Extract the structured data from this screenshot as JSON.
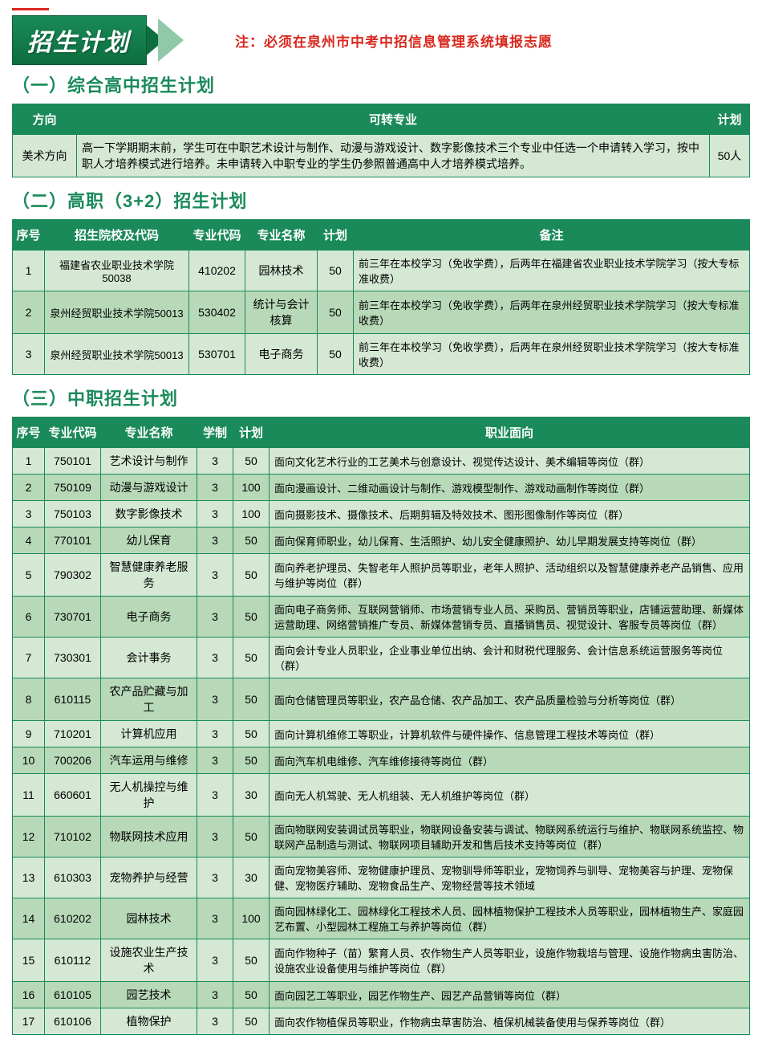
{
  "banner_title": "招生计划",
  "note": "注：必须在泉州市中考中招信息管理系统填报志愿",
  "section1": {
    "title": "（一）综合高中招生计划",
    "columns": [
      "方向",
      "可转专业",
      "计划"
    ],
    "rows": [
      {
        "dir": "美术方向",
        "desc": "高一下学期期末前，学生可在中职艺术设计与制作、动漫与游戏设计、数字影像技术三个专业中任选一个申请转入学习，按中职人才培养模式进行培养。未申请转入中职专业的学生仍参照普通高中人才培养模式培养。",
        "plan": "50人"
      }
    ]
  },
  "section2": {
    "title": "（二）高职（3+2）招生计划",
    "columns": [
      "序号",
      "招生院校及代码",
      "专业代码",
      "专业名称",
      "计划",
      "备注"
    ],
    "rows": [
      {
        "no": "1",
        "school": "福建省农业职业技术学院50038",
        "code": "410202",
        "major": "园林技术",
        "plan": "50",
        "remark": "前三年在本校学习（免收学费），后两年在福建省农业职业技术学院学习（按大专标准收费）"
      },
      {
        "no": "2",
        "school": "泉州经贸职业技术学院50013",
        "code": "530402",
        "major": "统计与会计核算",
        "plan": "50",
        "remark": "前三年在本校学习（免收学费），后两年在泉州经贸职业技术学院学习（按大专标准收费）"
      },
      {
        "no": "3",
        "school": "泉州经贸职业技术学院50013",
        "code": "530701",
        "major": "电子商务",
        "plan": "50",
        "remark": "前三年在本校学习（免收学费），后两年在泉州经贸职业技术学院学习（按大专标准收费）"
      }
    ]
  },
  "section3": {
    "title": "（三）中职招生计划",
    "columns": [
      "序号",
      "专业代码",
      "专业名称",
      "学制",
      "计划",
      "职业面向"
    ],
    "rows": [
      {
        "no": "1",
        "code": "750101",
        "major": "艺术设计与制作",
        "dur": "3",
        "plan": "50",
        "career": "面向文化艺术行业的工艺美术与创意设计、视觉传达设计、美术编辑等岗位（群）"
      },
      {
        "no": "2",
        "code": "750109",
        "major": "动漫与游戏设计",
        "dur": "3",
        "plan": "100",
        "career": "面向漫画设计、二维动画设计与制作、游戏模型制作、游戏动画制作等岗位（群）"
      },
      {
        "no": "3",
        "code": "750103",
        "major": "数字影像技术",
        "dur": "3",
        "plan": "100",
        "career": "面向摄影技术、摄像技术、后期剪辑及特效技术、图形图像制作等岗位（群）"
      },
      {
        "no": "4",
        "code": "770101",
        "major": "幼儿保育",
        "dur": "3",
        "plan": "50",
        "career": "面向保育师职业，幼儿保育、生活照护、幼儿安全健康照护、幼儿早期发展支持等岗位（群）"
      },
      {
        "no": "5",
        "code": "790302",
        "major": "智慧健康养老服务",
        "dur": "3",
        "plan": "50",
        "career": "面向养老护理员、失智老年人照护员等职业，老年人照护、活动组织以及智慧健康养老产品销售、应用与维护等岗位（群）"
      },
      {
        "no": "6",
        "code": "730701",
        "major": "电子商务",
        "dur": "3",
        "plan": "50",
        "career": "面向电子商务师、互联网营销师、市场营销专业人员、采购员、营销员等职业，店铺运营助理、新媒体运营助理、网络营销推广专员、新媒体营销专员、直播销售员、视觉设计、客服专员等岗位（群）"
      },
      {
        "no": "7",
        "code": "730301",
        "major": "会计事务",
        "dur": "3",
        "plan": "50",
        "career": "面向会计专业人员职业，企业事业单位出纳、会计和财税代理服务、会计信息系统运营服务等岗位（群）"
      },
      {
        "no": "8",
        "code": "610115",
        "major": "农产品贮藏与加工",
        "dur": "3",
        "plan": "50",
        "career": "面向仓储管理员等职业，农产品仓储、农产品加工、农产品质量检验与分析等岗位（群）"
      },
      {
        "no": "9",
        "code": "710201",
        "major": "计算机应用",
        "dur": "3",
        "plan": "50",
        "career": "面向计算机维修工等职业，计算机软件与硬件操作、信息管理工程技术等岗位（群）"
      },
      {
        "no": "10",
        "code": "700206",
        "major": "汽车运用与维修",
        "dur": "3",
        "plan": "50",
        "career": "面向汽车机电维修、汽车维修接待等岗位（群）"
      },
      {
        "no": "11",
        "code": "660601",
        "major": "无人机操控与维护",
        "dur": "3",
        "plan": "30",
        "career": "面向无人机驾驶、无人机组装、无人机维护等岗位（群）"
      },
      {
        "no": "12",
        "code": "710102",
        "major": "物联网技术应用",
        "dur": "3",
        "plan": "50",
        "career": "面向物联网安装调试员等职业，物联网设备安装与调试、物联网系统运行与维护、物联网系统监控、物联网产品制造与测试、物联网项目辅助开发和售后技术支持等岗位（群）"
      },
      {
        "no": "13",
        "code": "610303",
        "major": "宠物养护与经营",
        "dur": "3",
        "plan": "30",
        "career": "面向宠物美容师、宠物健康护理员、宠物驯导师等职业，宠物饲养与驯导、宠物美容与护理、宠物保健、宠物医疗辅助、宠物食品生产、宠物经营等技术领域"
      },
      {
        "no": "14",
        "code": "610202",
        "major": "园林技术",
        "dur": "3",
        "plan": "100",
        "career": "面向园林绿化工、园林绿化工程技术人员、园林植物保护工程技术人员等职业，园林植物生产、家庭园艺布置、小型园林工程施工与养护等岗位（群）"
      },
      {
        "no": "15",
        "code": "610112",
        "major": "设施农业生产技术",
        "dur": "3",
        "plan": "50",
        "career": "面向作物种子（苗）繁育人员、农作物生产人员等职业，设施作物栽培与管理、设施作物病虫害防治、设施农业设备使用与维护等岗位（群）"
      },
      {
        "no": "16",
        "code": "610105",
        "major": "园艺技术",
        "dur": "3",
        "plan": "50",
        "career": "面向园艺工等职业，园艺作物生产、园艺产品营销等岗位（群）"
      },
      {
        "no": "17",
        "code": "610106",
        "major": "植物保护",
        "dur": "3",
        "plan": "50",
        "career": "面向农作物植保员等职业，作物病虫草害防治、植保机械装备使用与保养等岗位（群）"
      }
    ]
  },
  "colors": {
    "header_green": "#1a8a5a",
    "row_light": "#d4e8d4",
    "row_dark": "#b8d9b8",
    "red_note": "#d9281e"
  }
}
